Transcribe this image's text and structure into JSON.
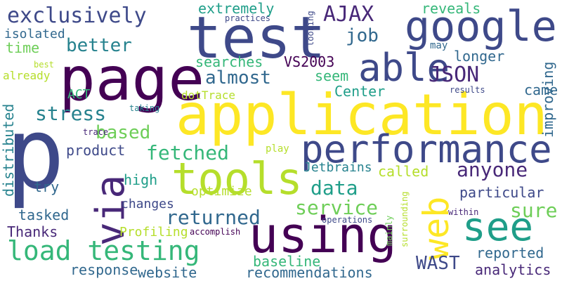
{
  "palette": {
    "dark_purple": "#440154",
    "indigo": "#482878",
    "slate_blue": "#3e4989",
    "steel_blue": "#31688e",
    "teal_blue": "#26828e",
    "teal": "#1f9e89",
    "green": "#35b779",
    "lime": "#6ece58",
    "yellow_green": "#b5de2b",
    "yellow": "#fde725"
  },
  "words": [
    {
      "text": "p",
      "color": "#3e4989"
    },
    {
      "text": "application",
      "color": "#fde725"
    },
    {
      "text": "test",
      "color": "#3e4989"
    },
    {
      "text": "page",
      "color": "#440154"
    },
    {
      "text": "performance",
      "color": "#3e4989"
    },
    {
      "text": "using",
      "color": "#440154"
    },
    {
      "text": "google",
      "color": "#3e4989"
    },
    {
      "text": "tools",
      "color": "#b5de2b"
    },
    {
      "text": "via",
      "color": "#482878"
    },
    {
      "text": "web",
      "color": "#fde725"
    },
    {
      "text": "see",
      "color": "#1f9e89"
    },
    {
      "text": "able",
      "color": "#3e4989"
    },
    {
      "text": "load testing",
      "color": "#35b779"
    },
    {
      "text": "exclusively",
      "color": "#3e4989"
    },
    {
      "text": "JSON",
      "color": "#482878"
    },
    {
      "text": "AJAX",
      "color": "#482878"
    },
    {
      "text": "stress",
      "color": "#26828e"
    },
    {
      "text": "fetched",
      "color": "#35b779"
    },
    {
      "text": "data",
      "color": "#1f9e89"
    },
    {
      "text": "anyone",
      "color": "#482878"
    },
    {
      "text": "service",
      "color": "#6ece58"
    },
    {
      "text": "returned",
      "color": "#31688e"
    },
    {
      "text": "sure",
      "color": "#6ece58"
    },
    {
      "text": "better",
      "color": "#26828e"
    },
    {
      "text": "almost",
      "color": "#31688e"
    },
    {
      "text": "based",
      "color": "#6ece58"
    },
    {
      "text": "WAST",
      "color": "#3e4989"
    },
    {
      "text": "job",
      "color": "#31688e"
    },
    {
      "text": "recommendations",
      "color": "#31688e"
    },
    {
      "text": "particular",
      "color": "#3e4989"
    },
    {
      "text": "analytics",
      "color": "#482878"
    },
    {
      "text": "website",
      "color": "#31688e"
    },
    {
      "text": "response",
      "color": "#31688e"
    },
    {
      "text": "Thanks",
      "color": "#482878"
    },
    {
      "text": "tasked",
      "color": "#31688e"
    },
    {
      "text": "called",
      "color": "#b5de2b"
    },
    {
      "text": "reported",
      "color": "#31688e"
    },
    {
      "text": "baseline",
      "color": "#35b779"
    },
    {
      "text": "extremely",
      "color": "#1f9e89"
    },
    {
      "text": "searches",
      "color": "#35b779"
    },
    {
      "text": "VS2003",
      "color": "#440154"
    },
    {
      "text": "seem",
      "color": "#35b779"
    },
    {
      "text": "Center",
      "color": "#1f9e89"
    },
    {
      "text": "came",
      "color": "#31688e"
    },
    {
      "text": "longer",
      "color": "#31688e"
    },
    {
      "text": "reveals",
      "color": "#35b779"
    },
    {
      "text": "improving",
      "color": "#31688e"
    },
    {
      "text": "distributed",
      "color": "#26828e"
    },
    {
      "text": "high",
      "color": "#1f9e89"
    },
    {
      "text": "product",
      "color": "#3e4989"
    },
    {
      "text": "try",
      "color": "#31688e"
    },
    {
      "text": "time",
      "color": "#6ece58"
    },
    {
      "text": "isolated",
      "color": "#31688e"
    },
    {
      "text": "changes",
      "color": "#3e4989"
    },
    {
      "text": "optimize",
      "color": "#b5de2b"
    },
    {
      "text": "Profiling",
      "color": "#b5de2b"
    },
    {
      "text": "Jetbrains",
      "color": "#26828e"
    },
    {
      "text": "ACT",
      "color": "#35b779"
    },
    {
      "text": "dotTrace",
      "color": "#b5de2b"
    },
    {
      "text": "already",
      "color": "#b5de2b"
    },
    {
      "text": "play",
      "color": "#b5de2b"
    },
    {
      "text": "may",
      "color": "#31688e"
    },
    {
      "text": "results",
      "color": "#3e4989"
    },
    {
      "text": "taking",
      "color": "#26828e"
    },
    {
      "text": "trace",
      "color": "#482878"
    },
    {
      "text": "best",
      "color": "#b5de2b"
    },
    {
      "text": "practices",
      "color": "#3e4989"
    },
    {
      "text": "looking",
      "color": "#3e4989"
    },
    {
      "text": "accomplish",
      "color": "#440154"
    },
    {
      "text": "operations",
      "color": "#3e4989"
    },
    {
      "text": "within",
      "color": "#482878"
    },
    {
      "text": "mainly",
      "color": "#6ece58"
    },
    {
      "text": "surrounding",
      "color": "#b5de2b"
    }
  ]
}
